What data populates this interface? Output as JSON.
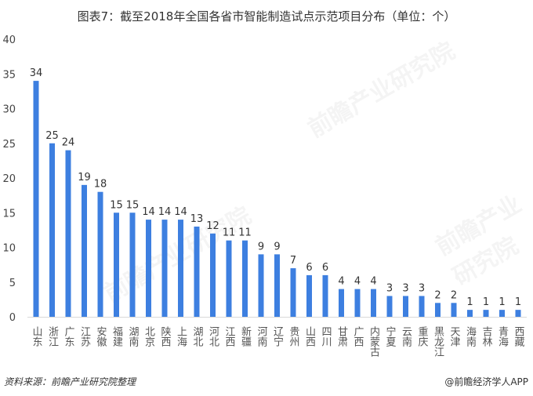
{
  "chart_data": {
    "type": "bar",
    "title": "图表7：截至2018年全国各省市智能制造试点示范项目分布（单位：个）",
    "categories": [
      "山东",
      "浙江",
      "广东",
      "江苏",
      "安徽",
      "福建",
      "湖南",
      "北京",
      "陕西",
      "上海",
      "湖北",
      "河北",
      "江西",
      "新疆",
      "河南",
      "辽宁",
      "贵州",
      "山西",
      "四川",
      "甘肃",
      "广西",
      "内蒙古",
      "宁夏",
      "云南",
      "重庆",
      "黑龙江",
      "天津",
      "海南",
      "吉林",
      "青海",
      "西藏"
    ],
    "values": [
      34,
      25,
      24,
      19,
      18,
      15,
      15,
      14,
      14,
      14,
      13,
      12,
      11,
      11,
      9,
      9,
      7,
      6,
      6,
      4,
      4,
      4,
      3,
      3,
      3,
      2,
      2,
      1,
      1,
      1,
      1
    ],
    "ylim": [
      0,
      40
    ],
    "yticks": [
      0,
      5,
      10,
      15,
      20,
      25,
      30,
      35,
      40
    ],
    "xlabel": "",
    "ylabel": "",
    "grid": false,
    "bar_color": "#3d7fe0"
  },
  "footer": {
    "source": "资料来源：前瞻产业研究院整理",
    "brand": "@前瞻经济学人APP"
  },
  "watermark": "前瞻产业研究院"
}
